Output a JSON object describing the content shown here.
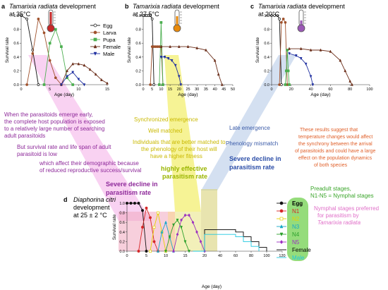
{
  "colors": {
    "egg": "#111111",
    "larva": "#a0522d",
    "pupa": "#4caf50",
    "female": "#6b2e1a",
    "male": "#1f2fa0",
    "n1": "#d62728",
    "n2": "#e6d200",
    "n3": "#17a9c7",
    "n4": "#2ca02c",
    "n5": "#9b30c0",
    "male_d": "#1ec8e0",
    "female_d": "#000000"
  },
  "panels": [
    {
      "id": "a",
      "letter": "a",
      "title": "Tamarixia radiata",
      "title2": " development",
      "temp": "at 35",
      "temp_unit": "°C",
      "xmax": 15,
      "xticks": [
        0,
        5,
        10,
        15
      ],
      "thermo": "#c62828"
    },
    {
      "id": "b",
      "letter": "b",
      "title": "Tamarixia radiata",
      "title2": " development",
      "temp": "at 27.5",
      "temp_unit": "°C",
      "xmax": 50,
      "xticks": [
        0,
        5,
        10,
        15,
        20,
        25,
        30,
        35,
        40,
        45,
        50
      ],
      "thermo": "#e88a0c"
    },
    {
      "id": "c",
      "letter": "c",
      "title": "Tamarixia radiata",
      "title2": " development",
      "temp": "at  20",
      "temp_unit": "°C",
      "xmax": 100,
      "xticks": [
        0,
        20,
        40,
        60,
        80,
        100
      ],
      "thermo": "#9b59b6"
    }
  ],
  "axes": {
    "survival_rate": "Survival rate",
    "age_day": "Age (day)",
    "yticks_top": [
      "0.0",
      "0.2",
      "0.4",
      "0.6",
      "0.8",
      "1.0"
    ],
    "yticks_d": [
      "0.0",
      "0.2",
      "0.4",
      "0.6",
      "0.8",
      "1.0"
    ],
    "xticks_d": [
      "0",
      "5",
      "10",
      "15",
      "20",
      "40",
      "60",
      "80",
      "100",
      "120"
    ]
  },
  "legend_top": [
    "Egg",
    "Larva",
    "Pupa",
    "Female",
    "Male"
  ],
  "legend_d": [
    "Egg",
    "N1",
    "N2",
    "N3",
    "N4",
    "N5",
    "Female",
    "Male"
  ],
  "panel_d": {
    "letter": "d",
    "title": "Diaphorina citri",
    "title2": "development",
    "temp": "at 25 ± 2 °C"
  },
  "annotations": {
    "early_1": "When the parasitoids emerge early,",
    "early_2": "the complete host population is exposed",
    "early_3": "to a relatively large number of searching",
    "early_4": "adult parasitoids",
    "low_1": "But survival rate and life span of adult",
    "low_2": "parasitoid is low",
    "demo_1": "which affect their demographic because",
    "demo_2": "of reduced reproductive success/survival",
    "sync": "Synchronized emergence",
    "well": "Well matched",
    "better_1": "Individuals that are better matched to",
    "better_2": "the phenology of their host will",
    "better_3": "have a higher fitness",
    "high_1": "highly effective",
    "high_2": "parasitism rate",
    "late": "Late emergence",
    "mismatch": "Phenology mismatch",
    "severe_r_1": "Severe decline in",
    "severe_r_2": "parasitism rate",
    "severe_l_1": "Severe decline in",
    "severe_l_2": "parasitism rate",
    "temp_1": "These results suggest that",
    "temp_2": "temperature changes would affect",
    "temp_3": "the synchrony between the arrival",
    "temp_4": "of parasitoids and could have a large",
    "temp_5": "effect on the population dynamics",
    "temp_6": "of both species",
    "pre_1": "Preadult stages,",
    "pre_2": "N1-N5 = Nymphal stages",
    "pref_1": "Nymphal stages preferred",
    "pref_2": "for parasitism by",
    "pref_3": "Tamarixia radiata"
  },
  "chart_data": [
    {
      "type": "line",
      "title": "Tamarixia radiata development at 35 °C",
      "xlabel": "Age (day)",
      "ylabel": "Survival rate",
      "xlim": [
        0,
        15
      ],
      "ylim": [
        0,
        1.0
      ],
      "series": [
        {
          "name": "Egg",
          "x": [
            0,
            1,
            2,
            3
          ],
          "y": [
            1.0,
            0.95,
            0.5,
            0.0
          ]
        },
        {
          "name": "Larva",
          "x": [
            1,
            2,
            3,
            4,
            5,
            6,
            7
          ],
          "y": [
            0.0,
            0.45,
            0.95,
            0.75,
            0.35,
            0.1,
            0.0
          ]
        },
        {
          "name": "Pupa",
          "x": [
            4,
            5,
            6,
            7,
            8,
            9
          ],
          "y": [
            0.0,
            0.6,
            0.8,
            0.55,
            0.1,
            0.0
          ]
        },
        {
          "name": "Female",
          "x": [
            7,
            8,
            9,
            10,
            11,
            12,
            13,
            14,
            15
          ],
          "y": [
            0.0,
            0.2,
            0.3,
            0.3,
            0.28,
            0.22,
            0.15,
            0.07,
            0.02
          ]
        },
        {
          "name": "Male",
          "x": [
            7,
            8,
            9,
            10,
            11
          ],
          "y": [
            0.0,
            0.12,
            0.18,
            0.08,
            0.0
          ]
        }
      ]
    },
    {
      "type": "line",
      "title": "Tamarixia radiata development at 27.5 °C",
      "xlabel": "Age (day)",
      "ylabel": "Survival rate",
      "xlim": [
        0,
        50
      ],
      "ylim": [
        0,
        1.0
      ],
      "series": [
        {
          "name": "Egg",
          "x": [
            0,
            1,
            2,
            3,
            4,
            5,
            6
          ],
          "y": [
            1.0,
            1.0,
            1.0,
            1.0,
            1.0,
            0.95,
            0.0
          ]
        },
        {
          "name": "Larva",
          "x": [
            4,
            5,
            6,
            7,
            8,
            9,
            10,
            11
          ],
          "y": [
            0.0,
            0.55,
            0.55,
            0.55,
            0.55,
            0.55,
            0.55,
            0.0
          ]
        },
        {
          "name": "Pupa",
          "x": [
            9,
            10,
            11
          ],
          "y": [
            0.0,
            0.9,
            0.0
          ]
        },
        {
          "name": "Female",
          "x": [
            10,
            15,
            20,
            25,
            30,
            35,
            40,
            42,
            44
          ],
          "y": [
            0.55,
            0.55,
            0.55,
            0.55,
            0.53,
            0.5,
            0.35,
            0.15,
            0.0
          ]
        },
        {
          "name": "Male",
          "x": [
            10,
            12,
            14,
            16,
            18,
            20,
            21
          ],
          "y": [
            0.4,
            0.4,
            0.38,
            0.35,
            0.28,
            0.12,
            0.0
          ]
        }
      ]
    },
    {
      "type": "line",
      "title": "Tamarixia radiata development at 20 °C",
      "xlabel": "Age (day)",
      "ylabel": "Survival rate",
      "xlim": [
        0,
        100
      ],
      "ylim": [
        0,
        1.0
      ],
      "series": [
        {
          "name": "Egg",
          "x": [
            0,
            3,
            6,
            8,
            10
          ],
          "y": [
            1.0,
            1.0,
            1.0,
            0.95,
            0.0
          ]
        },
        {
          "name": "Larva",
          "x": [
            8,
            10,
            12,
            14,
            16
          ],
          "y": [
            0.0,
            0.9,
            0.95,
            0.9,
            0.0
          ]
        },
        {
          "name": "Pupa",
          "x": [
            14,
            15,
            16,
            17,
            18
          ],
          "y": [
            0.0,
            0.2,
            0.5,
            0.2,
            0.0
          ]
        },
        {
          "name": "Female",
          "x": [
            18,
            30,
            40,
            50,
            60,
            70,
            75,
            80,
            82
          ],
          "y": [
            0.52,
            0.52,
            0.5,
            0.5,
            0.48,
            0.35,
            0.2,
            0.05,
            0.0
          ]
        },
        {
          "name": "Male",
          "x": [
            18,
            25,
            30,
            35,
            40,
            42
          ],
          "y": [
            0.45,
            0.42,
            0.38,
            0.3,
            0.12,
            0.0
          ]
        }
      ]
    },
    {
      "type": "line",
      "title": "Diaphorina citri development at 25 ± 2 °C",
      "xlabel": "Age (day)",
      "ylabel": "Survival rate",
      "ylim": [
        0,
        1.0
      ],
      "series": [
        {
          "name": "Egg",
          "x": [
            0,
            1,
            2,
            3,
            4,
            5
          ],
          "y": [
            1.0,
            1.0,
            1.0,
            1.0,
            0.85,
            0.0
          ]
        },
        {
          "name": "N1",
          "x": [
            3,
            4,
            5,
            6,
            7,
            8
          ],
          "y": [
            0.0,
            0.5,
            0.9,
            0.7,
            0.2,
            0.0
          ]
        },
        {
          "name": "N2",
          "x": [
            6,
            7,
            8,
            9,
            10
          ],
          "y": [
            0.0,
            0.5,
            0.8,
            0.4,
            0.0
          ]
        },
        {
          "name": "N3",
          "x": [
            8,
            9,
            10,
            11,
            12
          ],
          "y": [
            0.0,
            0.4,
            0.6,
            0.3,
            0.0
          ]
        },
        {
          "name": "N4",
          "x": [
            10,
            11,
            12,
            13,
            14,
            15,
            16
          ],
          "y": [
            0.0,
            0.3,
            0.55,
            0.65,
            0.5,
            0.2,
            0.0
          ]
        },
        {
          "name": "N5",
          "x": [
            12,
            13,
            14,
            15,
            16,
            17,
            18,
            19,
            20
          ],
          "y": [
            0.0,
            0.35,
            0.65,
            0.75,
            0.75,
            0.6,
            0.4,
            0.2,
            0.0
          ]
        },
        {
          "name": "Female",
          "x": [
            17,
            20,
            40,
            60,
            70,
            80,
            90,
            100
          ],
          "y": [
            0.0,
            0.45,
            0.45,
            0.4,
            0.3,
            0.2,
            0.08,
            0.0
          ]
        },
        {
          "name": "Male",
          "x": [
            17,
            20,
            40,
            60,
            70,
            80,
            90
          ],
          "y": [
            0.0,
            0.35,
            0.35,
            0.3,
            0.2,
            0.1,
            0.0
          ]
        }
      ]
    }
  ]
}
